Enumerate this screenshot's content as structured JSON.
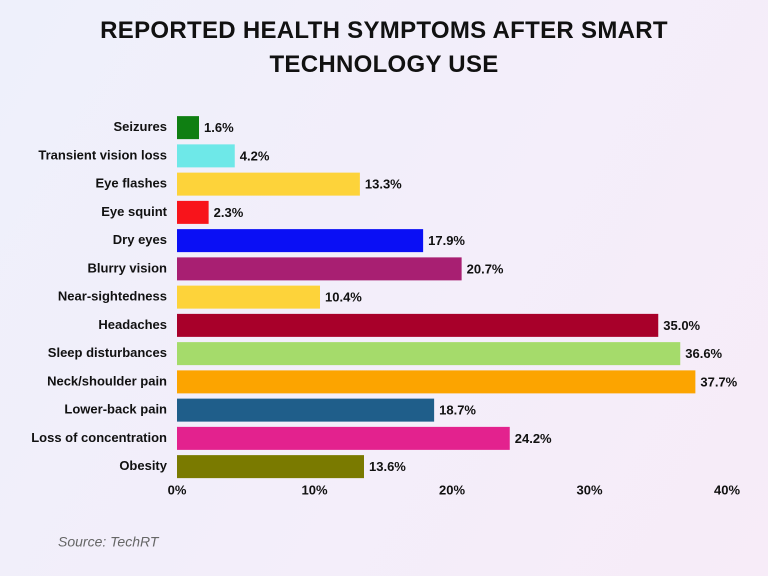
{
  "chart_data": {
    "type": "bar",
    "orientation": "horizontal",
    "title": "REPORTED HEALTH SYMPTOMS AFTER SMART TECHNOLOGY USE",
    "source": "Source: TechRT",
    "categories": [
      "Seizures",
      "Transient vision loss",
      "Eye flashes",
      "Eye squint",
      "Dry eyes",
      "Blurry vision",
      "Near-sightedness",
      "Headaches",
      "Sleep disturbances",
      "Neck/shoulder pain",
      "Lower-back pain",
      "Loss of concentration",
      "Obesity"
    ],
    "values": [
      1.6,
      4.2,
      13.3,
      2.3,
      17.9,
      20.7,
      10.4,
      35.0,
      36.6,
      37.7,
      18.7,
      24.2,
      13.6
    ],
    "value_labels": [
      "1.6%",
      "4.2%",
      "13.3%",
      "2.3%",
      "17.9%",
      "20.7%",
      "10.4%",
      "35.0%",
      "36.6%",
      "37.7%",
      "18.7%",
      "24.2%",
      "13.6%"
    ],
    "colors": [
      "#0f7f12",
      "#6ee8e8",
      "#fdd33a",
      "#f8141b",
      "#0a0ff5",
      "#a81f72",
      "#fdd33a",
      "#a8002a",
      "#a5db6b",
      "#fca400",
      "#1f5e8a",
      "#e3228e",
      "#7a7a00"
    ],
    "xlim": [
      0,
      40
    ],
    "xticks": [
      {
        "value": 0,
        "label": "0%"
      },
      {
        "value": 10,
        "label": "10%"
      },
      {
        "value": 20,
        "label": "20%"
      },
      {
        "value": 30,
        "label": "30%"
      },
      {
        "value": 40,
        "label": "40%"
      }
    ],
    "grid": false
  }
}
